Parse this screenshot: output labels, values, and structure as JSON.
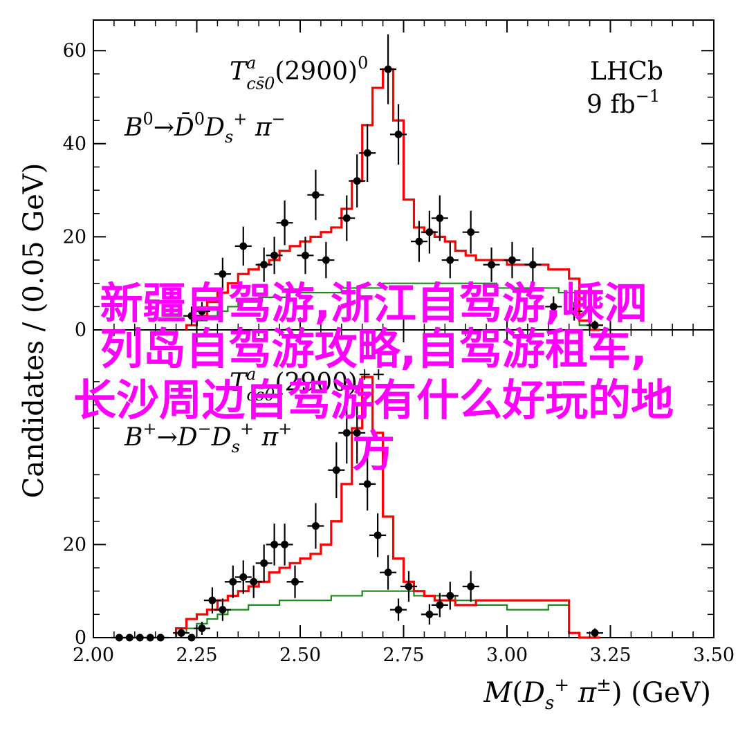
{
  "colors": {
    "fit": "#ff0000",
    "component": "#1a8a1a",
    "data": "#000000",
    "overlay": "#ff00ff"
  },
  "overlay_lines": [
    "新疆自驾游,浙江自驾游,嵊泗",
    "列岛自驾游攻略,自驾游租车,",
    "长沙周边自驾游有什么好玩的地",
    "方"
  ],
  "chart_data": {
    "type": "scatter",
    "xlabel": "M(Ds+ π±) (GeV)",
    "ylabel": "Candidates / (0.05 GeV)",
    "xlim": [
      2.0,
      3.5
    ],
    "x_ticks": [
      "2.00",
      "2.25",
      "2.50",
      "2.75",
      "3.00",
      "3.25",
      "3.50"
    ],
    "bin_width": 0.025,
    "grid": false,
    "experiment": "LHCb",
    "luminosity": "9 fb⁻¹",
    "panels": [
      {
        "name": "top",
        "resonance": "T^a_{cs̄0}(2900)^0",
        "decay": "B⁰→D̄⁰Ds⁺π⁻",
        "ylim": [
          0,
          65
        ],
        "y_ticks": [
          "0",
          "20",
          "40",
          "60"
        ],
        "data_points": [
          {
            "x": 2.2375,
            "y": 3,
            "err": 2.0
          },
          {
            "x": 2.2625,
            "y": 4,
            "err": 2.0
          },
          {
            "x": 2.3125,
            "y": 12,
            "err": 3.5
          },
          {
            "x": 2.3625,
            "y": 18,
            "err": 4.2
          },
          {
            "x": 2.4125,
            "y": 14,
            "err": 3.7
          },
          {
            "x": 2.4375,
            "y": 16,
            "err": 4.0
          },
          {
            "x": 2.4625,
            "y": 23,
            "err": 4.8
          },
          {
            "x": 2.5125,
            "y": 16,
            "err": 4.0
          },
          {
            "x": 2.5375,
            "y": 29,
            "err": 5.4
          },
          {
            "x": 2.5625,
            "y": 15,
            "err": 3.9
          },
          {
            "x": 2.6125,
            "y": 24,
            "err": 4.9
          },
          {
            "x": 2.6375,
            "y": 32,
            "err": 5.7
          },
          {
            "x": 2.6625,
            "y": 38,
            "err": 6.2
          },
          {
            "x": 2.7125,
            "y": 56,
            "err": 7.5
          },
          {
            "x": 2.7375,
            "y": 42,
            "err": 6.5
          },
          {
            "x": 2.7875,
            "y": 19,
            "err": 4.4
          },
          {
            "x": 2.8125,
            "y": 21,
            "err": 4.6
          },
          {
            "x": 2.8375,
            "y": 24,
            "err": 4.9
          },
          {
            "x": 2.8625,
            "y": 15,
            "err": 3.9
          },
          {
            "x": 2.9125,
            "y": 21,
            "err": 4.6
          },
          {
            "x": 2.9625,
            "y": 14,
            "err": 3.7
          },
          {
            "x": 3.0125,
            "y": 15,
            "err": 3.9
          },
          {
            "x": 3.0625,
            "y": 14,
            "err": 3.7
          },
          {
            "x": 3.1125,
            "y": 5,
            "err": 2.2
          },
          {
            "x": 3.1625,
            "y": 4,
            "err": 2.0
          },
          {
            "x": 3.2125,
            "y": 1,
            "err": 1.0
          }
        ],
        "fit_edges": [
          2.225,
          2.25,
          2.275,
          2.3,
          2.325,
          2.35,
          2.375,
          2.4,
          2.425,
          2.45,
          2.475,
          2.5,
          2.525,
          2.55,
          2.575,
          2.6,
          2.625,
          2.65,
          2.675,
          2.7,
          2.725,
          2.75,
          2.775,
          2.8,
          2.825,
          2.85,
          2.875,
          2.9,
          2.925,
          2.95,
          2.975,
          3.0,
          3.025,
          3.05,
          3.075,
          3.1,
          3.125,
          3.15,
          3.175,
          3.2,
          3.225
        ],
        "fit_values": [
          1,
          3,
          6,
          8,
          10,
          12,
          13,
          14,
          15,
          17,
          18,
          19,
          20,
          21,
          22,
          26,
          32,
          44,
          52,
          56,
          45,
          28,
          22,
          21,
          20,
          19,
          17,
          16,
          15,
          15,
          15,
          14,
          14,
          14,
          14,
          13,
          13,
          11,
          2,
          0
        ],
        "component_values": [
          1,
          2,
          3,
          4,
          5,
          6,
          6,
          7,
          7,
          7,
          8,
          8,
          8,
          8,
          8,
          9,
          9,
          9,
          9,
          10,
          10,
          10,
          10,
          10,
          10,
          10,
          10,
          10,
          10,
          10,
          9,
          9,
          9,
          9,
          9,
          9,
          8,
          8,
          1,
          0
        ]
      },
      {
        "name": "bottom",
        "resonance": "T^a_{cs̄0}(2900)^{++}",
        "decay": "B⁺→D⁻Ds⁺π⁺",
        "ylim": [
          0,
          65
        ],
        "y_ticks": [
          "0",
          "20"
        ],
        "data_points": [
          {
            "x": 2.0625,
            "y": 0,
            "err": 0
          },
          {
            "x": 2.0875,
            "y": 0,
            "err": 0
          },
          {
            "x": 2.1125,
            "y": 0,
            "err": 0
          },
          {
            "x": 2.1375,
            "y": 0,
            "err": 0
          },
          {
            "x": 2.1625,
            "y": 0,
            "err": 0
          },
          {
            "x": 2.2125,
            "y": 1,
            "err": 1.0
          },
          {
            "x": 2.2375,
            "y": 0,
            "err": 0
          },
          {
            "x": 2.2625,
            "y": 2,
            "err": 1.4
          },
          {
            "x": 2.2875,
            "y": 8,
            "err": 2.8
          },
          {
            "x": 2.3125,
            "y": 6,
            "err": 2.4
          },
          {
            "x": 2.3375,
            "y": 12,
            "err": 3.5
          },
          {
            "x": 2.3625,
            "y": 13,
            "err": 3.6
          },
          {
            "x": 2.3875,
            "y": 12,
            "err": 3.5
          },
          {
            "x": 2.4125,
            "y": 16,
            "err": 4.0
          },
          {
            "x": 2.4375,
            "y": 20,
            "err": 4.5
          },
          {
            "x": 2.4625,
            "y": 20,
            "err": 4.5
          },
          {
            "x": 2.4875,
            "y": 12,
            "err": 3.5
          },
          {
            "x": 2.5375,
            "y": 24,
            "err": 4.9
          },
          {
            "x": 2.5875,
            "y": 36,
            "err": 6.0
          },
          {
            "x": 2.6125,
            "y": 44,
            "err": 6.6
          },
          {
            "x": 2.6375,
            "y": 44,
            "err": 6.6
          },
          {
            "x": 2.6625,
            "y": 33,
            "err": 5.7
          },
          {
            "x": 2.6875,
            "y": 22,
            "err": 4.7
          },
          {
            "x": 2.7125,
            "y": 14,
            "err": 3.7
          },
          {
            "x": 2.7375,
            "y": 6,
            "err": 2.4
          },
          {
            "x": 2.7625,
            "y": 11,
            "err": 3.3
          },
          {
            "x": 2.8125,
            "y": 5,
            "err": 2.2
          },
          {
            "x": 2.8375,
            "y": 7,
            "err": 2.6
          },
          {
            "x": 2.8625,
            "y": 9,
            "err": 3.0
          },
          {
            "x": 2.9125,
            "y": 11,
            "err": 3.3
          },
          {
            "x": 3.2125,
            "y": 1,
            "err": 1.0
          }
        ],
        "fit_edges": [
          2.2,
          2.225,
          2.25,
          2.275,
          2.3,
          2.325,
          2.35,
          2.375,
          2.4,
          2.425,
          2.45,
          2.475,
          2.5,
          2.525,
          2.55,
          2.575,
          2.6,
          2.625,
          2.65,
          2.675,
          2.7,
          2.725,
          2.75,
          2.775,
          2.8,
          2.825,
          2.85,
          2.875,
          2.9,
          2.925,
          2.95,
          2.975,
          3.0,
          3.025,
          3.05,
          3.075,
          3.1,
          3.125,
          3.15,
          3.175,
          3.2,
          3.225
        ],
        "fit_values": [
          2,
          4,
          5,
          6,
          8,
          9,
          10,
          11,
          12,
          14,
          15,
          16,
          17,
          18,
          20,
          25,
          33,
          45,
          56,
          44,
          26,
          17,
          12,
          10,
          9,
          8,
          8,
          7,
          7,
          8,
          8,
          8,
          8,
          8,
          8,
          8,
          8,
          8,
          1,
          0,
          0
        ],
        "component_values": [
          1,
          2,
          3,
          4,
          5,
          6,
          6,
          7,
          7,
          7,
          8,
          8,
          8,
          8,
          8,
          9,
          9,
          9,
          10,
          10,
          10,
          10,
          10,
          9,
          9,
          9,
          9,
          8,
          8,
          7,
          7,
          7,
          6,
          6,
          6,
          6,
          7,
          7,
          1,
          0,
          0
        ]
      }
    ]
  }
}
